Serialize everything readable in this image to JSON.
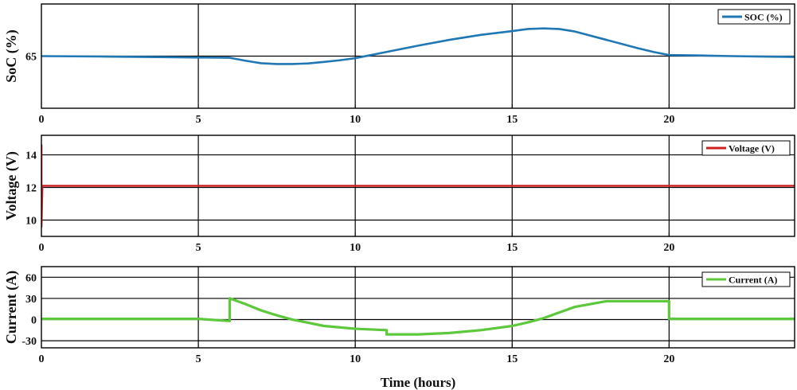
{
  "chart_data": [
    {
      "type": "line",
      "ylabel": "SoC (%)",
      "xlabel": "",
      "xlim": [
        0,
        24
      ],
      "ylim": [
        62.5,
        67.5
      ],
      "xticks": [
        0,
        5,
        10,
        15,
        20
      ],
      "xtick_labels": [
        "0",
        "5",
        "10",
        "15",
        "20"
      ],
      "yticks": [
        65
      ],
      "ytick_labels": [
        "65"
      ],
      "grid": true,
      "legend_position": "top-right",
      "series": [
        {
          "name": "SOC (%)",
          "color": "#1f77b4",
          "x": [
            0,
            2,
            4,
            6,
            6.5,
            7,
            7.5,
            8,
            8.5,
            9,
            9.5,
            10,
            10.5,
            11,
            12,
            13,
            14,
            15,
            15.5,
            16,
            16.5,
            17,
            18,
            19,
            19.5,
            20,
            21,
            22,
            23,
            24
          ],
          "y": [
            65.0,
            64.98,
            64.95,
            64.92,
            64.78,
            64.66,
            64.62,
            64.62,
            64.65,
            64.72,
            64.8,
            64.9,
            65.05,
            65.2,
            65.5,
            65.78,
            66.02,
            66.2,
            66.3,
            66.33,
            66.3,
            66.18,
            65.78,
            65.38,
            65.2,
            65.05,
            65.03,
            65.0,
            64.98,
            64.96
          ]
        }
      ]
    },
    {
      "type": "line",
      "ylabel": "Voltage (V)",
      "xlabel": "",
      "xlim": [
        0,
        24
      ],
      "ylim": [
        9,
        15.2
      ],
      "xticks": [
        0,
        5,
        10,
        15,
        20
      ],
      "xtick_labels": [
        "0",
        "5",
        "10",
        "15",
        "20"
      ],
      "yticks": [
        10,
        12,
        14
      ],
      "ytick_labels": [
        "10",
        "12",
        "14"
      ],
      "grid": true,
      "legend_position": "top-right",
      "series": [
        {
          "name": "Voltage (V)",
          "color": "#cc2222",
          "x": [
            0,
            0,
            0,
            0.03,
            24
          ],
          "y": [
            12.1,
            14.6,
            9.6,
            12.1,
            12.1
          ]
        }
      ]
    },
    {
      "type": "line",
      "ylabel": "Current (A)",
      "xlabel": "Time (hours)",
      "xlim": [
        0,
        24
      ],
      "ylim": [
        -40,
        75
      ],
      "xticks": [
        0,
        5,
        10,
        15,
        20
      ],
      "xtick_labels": [
        "0",
        "5",
        "10",
        "15",
        "20"
      ],
      "yticks": [
        -30,
        0,
        30,
        60
      ],
      "ytick_labels": [
        "-30",
        "0",
        "30",
        "60"
      ],
      "grid": true,
      "legend_position": "top-right",
      "series": [
        {
          "name": "Current (A)",
          "color": "#5dc83c",
          "x": [
            0,
            5,
            6,
            6,
            6.5,
            7,
            7.5,
            8,
            9,
            10,
            10.5,
            11,
            11,
            12,
            13,
            14,
            15,
            15.5,
            16,
            16.5,
            17,
            18,
            19,
            20,
            20,
            24
          ],
          "y": [
            1,
            1,
            -2,
            30,
            22,
            13,
            6,
            0,
            -9,
            -13,
            -14,
            -15,
            -21,
            -21,
            -19,
            -15,
            -9,
            -4,
            2,
            10,
            18,
            26,
            26,
            26,
            1,
            1
          ]
        }
      ]
    }
  ]
}
